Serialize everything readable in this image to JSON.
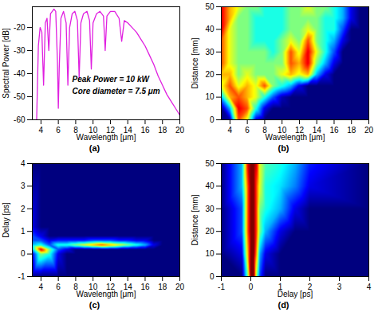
{
  "chart_data": [
    {
      "type": "line",
      "caption": "(a)",
      "xlabel": "Wavelength [μm]",
      "ylabel": "Spectral Power [dB]",
      "xlim": [
        3,
        20
      ],
      "xticks": [
        4,
        6,
        8,
        10,
        12,
        14,
        16,
        18,
        20
      ],
      "ylim": [
        -60,
        -11
      ],
      "yticks": [
        -60,
        -50,
        -40,
        -30,
        -20
      ],
      "annotations": [
        "Peak Power = 10 kW",
        "Core diameter = 7.5 μm"
      ],
      "color": "#e020e0",
      "x": [
        3.5,
        3.7,
        3.9,
        4.1,
        4.3,
        4.5,
        4.7,
        4.9,
        5.1,
        5.3,
        5.5,
        5.7,
        5.9,
        6.0,
        6.1,
        6.3,
        6.6,
        6.9,
        7.1,
        7.3,
        7.6,
        7.9,
        8.2,
        8.4,
        8.6,
        8.9,
        9.3,
        9.6,
        9.8,
        10.0,
        10.4,
        10.8,
        11.2,
        11.4,
        11.6,
        12.0,
        12.5,
        13.0,
        13.3,
        13.6,
        14.0,
        14.5,
        15.0,
        15.5,
        16.0,
        16.5,
        17.0,
        17.5,
        18.0,
        18.5,
        19.0,
        19.5,
        20.0
      ],
      "values": [
        -60,
        -28,
        -20,
        -22,
        -45,
        -18,
        -16,
        -30,
        -14,
        -13,
        -12,
        -13,
        -35,
        -55,
        -38,
        -16,
        -13,
        -18,
        -45,
        -20,
        -14,
        -13,
        -17,
        -42,
        -18,
        -14,
        -13,
        -17,
        -38,
        -18,
        -14,
        -13,
        -15,
        -30,
        -15,
        -13,
        -13,
        -16,
        -26,
        -17,
        -18,
        -20,
        -22,
        -25,
        -28,
        -32,
        -36,
        -41,
        -45,
        -49,
        -52,
        -55,
        -58
      ]
    },
    {
      "type": "heatmap",
      "caption": "(b)",
      "xlabel": "Wavelength [μm]",
      "ylabel": "Distance [mm]",
      "xlim": [
        3,
        20
      ],
      "xticks": [
        4,
        6,
        8,
        10,
        12,
        14,
        16,
        18,
        20
      ],
      "ylim": [
        0,
        50
      ],
      "yticks": [
        0,
        10,
        20,
        30,
        40,
        50
      ],
      "zlim": [
        0,
        1
      ],
      "x": [
        3,
        4,
        5,
        6,
        7,
        8,
        9,
        10,
        11,
        12,
        13,
        14,
        15,
        16,
        17,
        18,
        19,
        20
      ],
      "y": [
        0,
        5,
        10,
        15,
        20,
        25,
        30,
        35,
        40,
        45,
        50
      ],
      "z": [
        [
          0,
          0.05,
          0.8,
          0.6,
          0.1,
          0,
          0,
          0,
          0,
          0,
          0,
          0,
          0,
          0,
          0,
          0,
          0,
          0
        ],
        [
          0,
          0.3,
          0.9,
          0.8,
          0.4,
          0.1,
          0,
          0,
          0,
          0,
          0,
          0,
          0,
          0,
          0,
          0,
          0,
          0
        ],
        [
          0.3,
          0.7,
          0.8,
          0.7,
          0.6,
          0.4,
          0.2,
          0.05,
          0,
          0,
          0,
          0,
          0,
          0,
          0,
          0,
          0,
          0
        ],
        [
          0.6,
          0.8,
          0.6,
          0.7,
          0.6,
          0.8,
          0.5,
          0.4,
          0.3,
          0.1,
          0,
          0,
          0,
          0,
          0,
          0,
          0,
          0
        ],
        [
          0.7,
          0.7,
          0.5,
          0.6,
          0.5,
          0.5,
          0.5,
          0.6,
          0.7,
          0.6,
          0.7,
          0.3,
          0.1,
          0,
          0,
          0,
          0,
          0
        ],
        [
          0.8,
          0.6,
          0.5,
          0.5,
          0.5,
          0.5,
          0.5,
          0.5,
          0.8,
          0.7,
          0.9,
          0.5,
          0.3,
          0.1,
          0,
          0,
          0,
          0
        ],
        [
          0.8,
          0.6,
          0.5,
          0.5,
          0.5,
          0.5,
          0.4,
          0.5,
          0.8,
          0.6,
          0.9,
          0.6,
          0.4,
          0.2,
          0,
          0,
          0,
          0
        ],
        [
          0.8,
          0.6,
          0.5,
          0.5,
          0.4,
          0.4,
          0.4,
          0.5,
          0.6,
          0.5,
          0.8,
          0.5,
          0.4,
          0.3,
          0.1,
          0,
          0,
          0
        ],
        [
          0.9,
          0.6,
          0.5,
          0.5,
          0.4,
          0.4,
          0.4,
          0.4,
          0.5,
          0.5,
          0.6,
          0.5,
          0.4,
          0.4,
          0.2,
          0,
          0,
          0
        ],
        [
          0.9,
          0.7,
          0.5,
          0.5,
          0.4,
          0.4,
          0.4,
          0.4,
          0.5,
          0.5,
          0.5,
          0.5,
          0.4,
          0.4,
          0.3,
          0.1,
          0,
          0
        ],
        [
          0.9,
          0.7,
          0.6,
          0.5,
          0.5,
          0.4,
          0.4,
          0.4,
          0.5,
          0.5,
          0.6,
          0.5,
          0.5,
          0.4,
          0.3,
          0.1,
          0,
          0
        ]
      ]
    },
    {
      "type": "heatmap",
      "caption": "(c)",
      "xlabel": "Wavelength [μm]",
      "ylabel": "Delay [ps]",
      "xlim": [
        3,
        20
      ],
      "xticks": [
        4,
        6,
        8,
        10,
        12,
        14,
        16,
        18,
        20
      ],
      "ylim": [
        -1,
        4
      ],
      "yticks": [
        -1,
        0,
        1,
        2,
        3,
        4
      ],
      "zlim": [
        0,
        1
      ],
      "x": [
        3,
        4,
        5,
        6,
        7,
        8,
        9,
        10,
        11,
        12,
        13,
        14,
        15,
        16,
        17,
        18,
        19,
        20
      ],
      "y": [
        -1,
        0,
        0.2,
        0.4,
        0.6,
        0.8,
        1.2,
        4
      ],
      "z": [
        [
          0,
          0,
          0,
          0,
          0,
          0,
          0,
          0,
          0,
          0,
          0,
          0,
          0,
          0,
          0,
          0,
          0,
          0
        ],
        [
          0.1,
          0.5,
          0.4,
          0.1,
          0,
          0,
          0,
          0,
          0,
          0,
          0,
          0,
          0,
          0,
          0,
          0,
          0,
          0
        ],
        [
          0.3,
          0.9,
          0.5,
          0.2,
          0.1,
          0,
          0,
          0,
          0,
          0,
          0,
          0,
          0,
          0,
          0,
          0,
          0,
          0
        ],
        [
          0.3,
          0.4,
          0.2,
          0.4,
          0.4,
          0.5,
          0.6,
          0.7,
          0.8,
          0.7,
          0.6,
          0.5,
          0.4,
          0.3,
          0.1,
          0,
          0,
          0
        ],
        [
          0.2,
          0.2,
          0.1,
          0.15,
          0.15,
          0.15,
          0.15,
          0.2,
          0.2,
          0.2,
          0.15,
          0.15,
          0.1,
          0.1,
          0,
          0,
          0,
          0
        ],
        [
          0.2,
          0.1,
          0,
          0,
          0,
          0,
          0,
          0,
          0,
          0,
          0,
          0,
          0,
          0,
          0,
          0,
          0,
          0
        ],
        [
          0.1,
          0,
          0,
          0,
          0,
          0,
          0,
          0,
          0,
          0,
          0,
          0,
          0,
          0,
          0,
          0,
          0,
          0
        ],
        [
          0,
          0,
          0,
          0,
          0,
          0,
          0,
          0,
          0,
          0,
          0,
          0,
          0,
          0,
          0,
          0,
          0,
          0
        ]
      ]
    },
    {
      "type": "heatmap",
      "caption": "(d)",
      "xlabel": "Delay [ps]",
      "ylabel": "Distance [mm]",
      "xlim": [
        -1,
        4
      ],
      "xticks": [
        -1,
        0,
        1,
        2,
        3,
        4
      ],
      "ylim": [
        0,
        50
      ],
      "yticks": [
        0,
        10,
        20,
        30,
        40,
        50
      ],
      "zlim": [
        0,
        1
      ],
      "x": [
        -1,
        -0.3,
        -0.1,
        0,
        0.1,
        0.2,
        0.3,
        0.5,
        1,
        1.5,
        2,
        4
      ],
      "y": [
        0,
        10,
        20,
        30,
        40,
        50
      ],
      "z": [
        [
          0,
          0,
          0.5,
          1,
          1,
          0.5,
          0.2,
          0,
          0,
          0,
          0,
          0
        ],
        [
          0,
          0.1,
          0.7,
          1,
          1,
          0.7,
          0.3,
          0.1,
          0,
          0,
          0,
          0
        ],
        [
          0,
          0.2,
          0.8,
          1,
          1,
          0.8,
          0.5,
          0.3,
          0.1,
          0,
          0,
          0
        ],
        [
          0,
          0.2,
          0.8,
          1,
          1,
          0.8,
          0.5,
          0.4,
          0.3,
          0.1,
          0,
          0
        ],
        [
          0,
          0.3,
          0.8,
          1,
          1,
          0.8,
          0.6,
          0.4,
          0.35,
          0.25,
          0.1,
          0
        ],
        [
          0,
          0.3,
          0.9,
          1,
          1,
          0.9,
          0.6,
          0.45,
          0.4,
          0.3,
          0.15,
          0
        ]
      ]
    }
  ]
}
